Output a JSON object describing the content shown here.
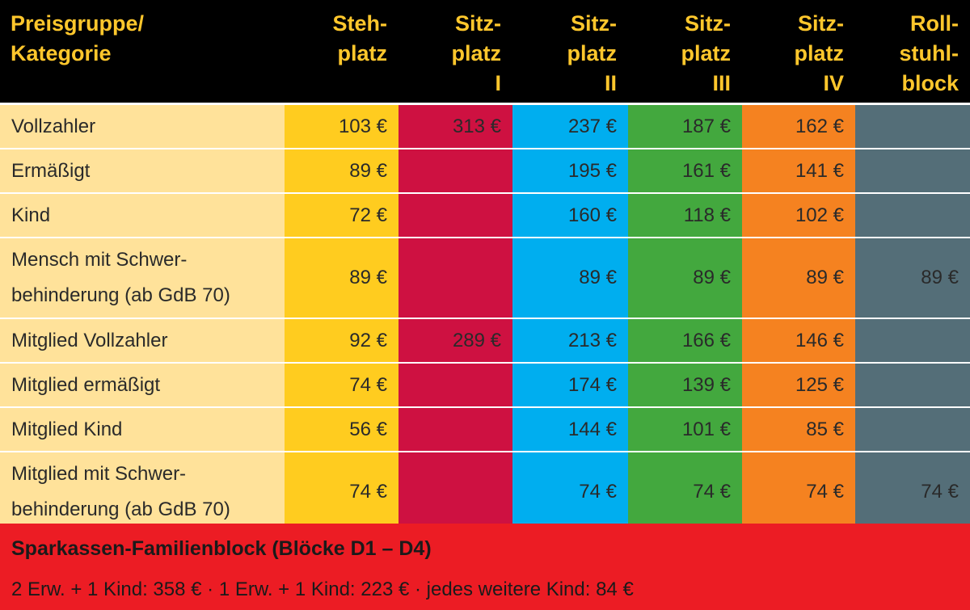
{
  "colors": {
    "header_bg": "#000000",
    "header_text": "#ffc72c",
    "label_bg": "#ffe29a",
    "stehplatz": "#ffcc1f",
    "sitzplatz_1": "#ce1141",
    "sitzplatz_2": "#00aeef",
    "sitzplatz_3": "#43a83e",
    "sitzplatz_4": "#f58220",
    "rollstuhlblock": "#546e78",
    "footer_bg": "#ec1c24"
  },
  "header": {
    "category": "Preisgruppe/\nKategorie",
    "columns": [
      "Steh-\nplatz",
      "Sitz-\nplatz\nI",
      "Sitz-\nplatz\nII",
      "Sitz-\nplatz\nIII",
      "Sitz-\nplatz\nIV",
      "Roll-\nstuhl-\nblock"
    ]
  },
  "rows": [
    {
      "label": "Vollzahler",
      "double": false,
      "prices": [
        "103 €",
        "313 €",
        "237 €",
        "187 €",
        "162 €",
        ""
      ]
    },
    {
      "label": "Ermäßigt",
      "double": false,
      "prices": [
        "89 €",
        "",
        "195 €",
        "161 €",
        "141 €",
        ""
      ]
    },
    {
      "label": "Kind",
      "double": false,
      "prices": [
        "72 €",
        "",
        "160 €",
        "118 €",
        "102 €",
        ""
      ]
    },
    {
      "label": "Mensch mit Schwer-\nbehinderung (ab GdB 70)",
      "double": true,
      "prices": [
        "89 €",
        "",
        "89 €",
        "89 €",
        "89 €",
        "89 €"
      ]
    },
    {
      "label": "Mitglied Vollzahler",
      "double": false,
      "prices": [
        "92 €",
        "289 €",
        "213 €",
        "166 €",
        "146 €",
        ""
      ]
    },
    {
      "label": "Mitglied ermäßigt",
      "double": false,
      "prices": [
        "74 €",
        "",
        "174 €",
        "139 €",
        "125 €",
        ""
      ]
    },
    {
      "label": "Mitglied Kind",
      "double": false,
      "prices": [
        "56 €",
        "",
        "144 €",
        "101 €",
        "85 €",
        ""
      ]
    },
    {
      "label": "Mitglied mit Schwer-\nbehinderung (ab GdB 70)",
      "double": true,
      "prices": [
        "74 €",
        "",
        "74 €",
        "74 €",
        "74 €",
        "74 €"
      ]
    }
  ],
  "footer": {
    "title": "Sparkassen-Familienblock (Blöcke D1 – D4)",
    "text": "2 Erw. + 1 Kind: 358 € · 1 Erw. + 1 Kind: 223 € · jedes weitere Kind: 84 €"
  }
}
